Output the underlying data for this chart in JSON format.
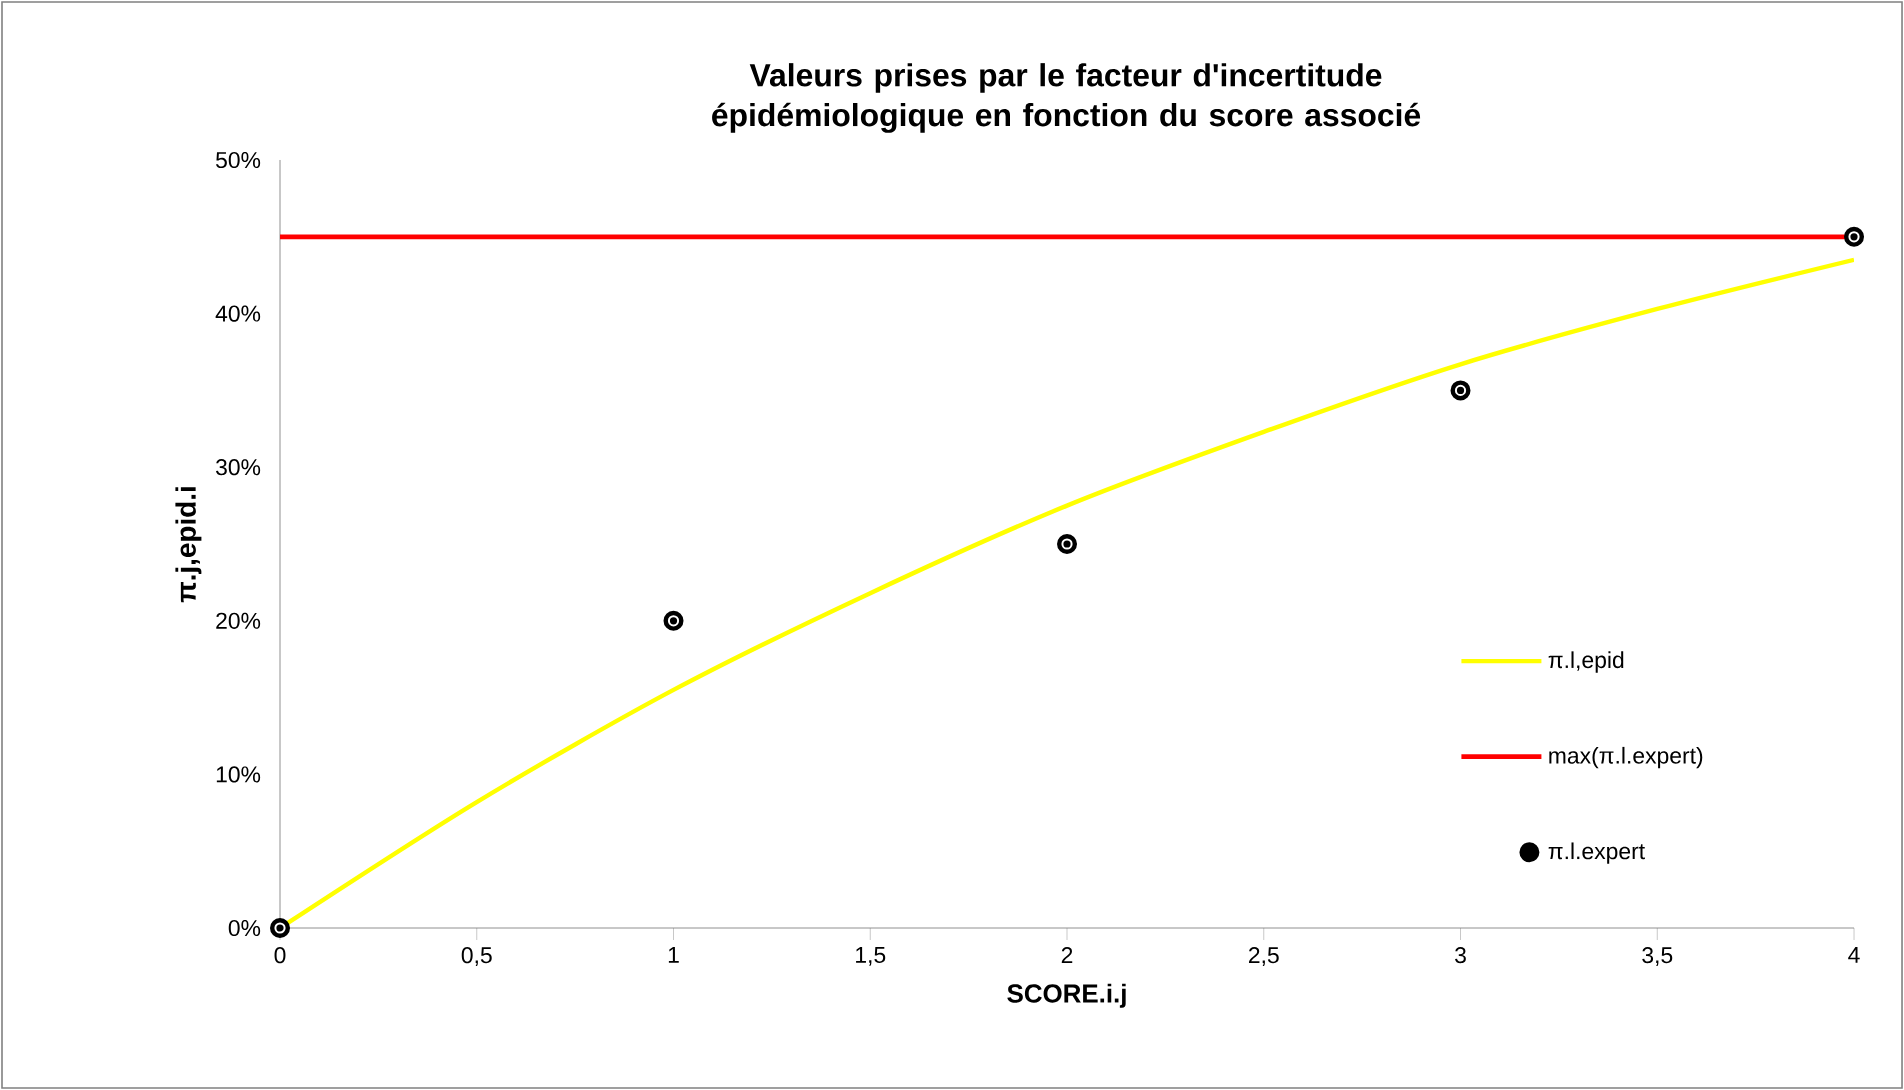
{
  "chart_data": {
    "type": "line",
    "title": "Valeurs prises par le facteur d'incertitude épidémiologique en fonction du score associé",
    "xlabel": "SCORE.i.j",
    "ylabel": "π.j,epid.i",
    "xlim": [
      0,
      4
    ],
    "ylim": [
      0,
      50
    ],
    "xticks": [
      0,
      {
        "value": 0.5,
        "label": "0,5"
      },
      1,
      {
        "value": 1.5,
        "label": "1,5"
      },
      2,
      {
        "value": 2.5,
        "label": "2,5"
      },
      3,
      {
        "value": 3.5,
        "label": "3,5"
      },
      4
    ],
    "yticks": [
      {
        "value": 0,
        "label": "0%"
      },
      {
        "value": 10,
        "label": "10%"
      },
      {
        "value": 20,
        "label": "20%"
      },
      {
        "value": 30,
        "label": "30%"
      },
      {
        "value": 40,
        "label": "40%"
      },
      {
        "value": 50,
        "label": "50%"
      }
    ],
    "grid": false,
    "legend": "right",
    "series": [
      {
        "name": "π.l,epid",
        "color": "#ffff00",
        "x": [
          0,
          0.5,
          1,
          1.5,
          2,
          2.5,
          3,
          3.5,
          4
        ],
        "values": [
          0,
          8.2,
          15.5,
          21.8,
          27.5,
          32.3,
          36.7,
          40.3,
          43.5
        ]
      },
      {
        "name": "max(π.l.expert)",
        "color": "#ff0000",
        "x": [
          0,
          4
        ],
        "values": [
          45,
          45
        ]
      },
      {
        "name": "π.l.expert",
        "type": "scatter",
        "color": "#000000",
        "marker": "circle",
        "x": [
          0,
          1,
          2,
          3,
          4
        ],
        "values": [
          0,
          20,
          25,
          35,
          45
        ]
      }
    ]
  }
}
